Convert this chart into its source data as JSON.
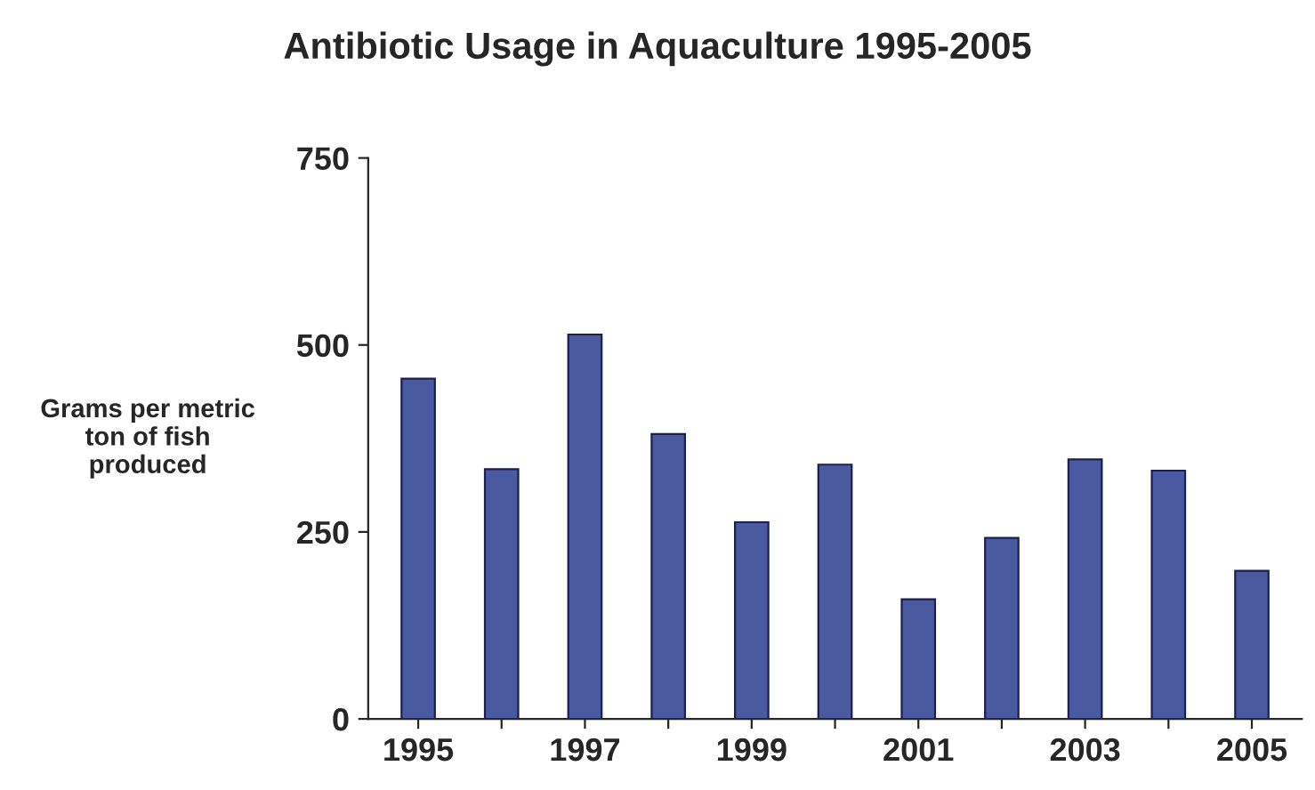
{
  "chart_data": {
    "type": "bar",
    "title": "Antibiotic Usage in Aquaculture 1995-2005",
    "ylabel": "Grams per metric\nton of fish\nproduced",
    "categories": [
      "1995",
      null,
      "1997",
      null,
      "1999",
      null,
      "2001",
      null,
      "2003",
      null,
      "2005"
    ],
    "values": [
      455,
      334,
      514,
      381,
      263,
      340,
      160,
      242,
      347,
      332,
      198
    ],
    "color": "#4a5aa0",
    "ylim": [
      0,
      750
    ],
    "yticks": [
      0,
      250,
      500,
      750
    ],
    "grid": false
  }
}
